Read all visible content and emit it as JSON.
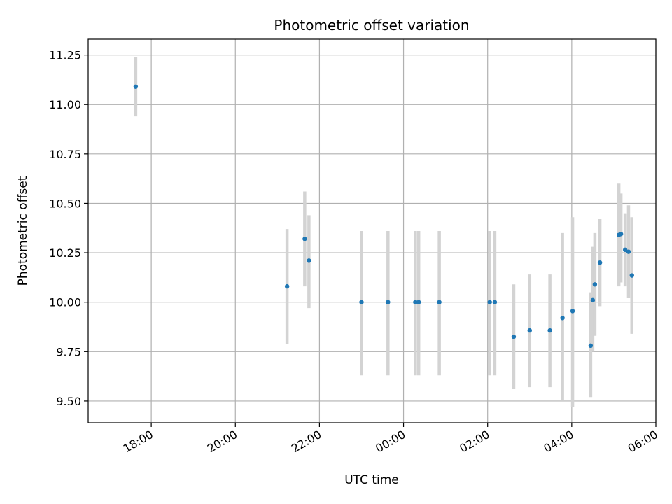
{
  "chart_data": {
    "type": "scatter",
    "title": "Photometric offset variation",
    "xlabel": "UTC time",
    "ylabel": "Photometric offset",
    "grid": true,
    "xlim_hours": [
      16.5,
      30.0
    ],
    "ylim": [
      9.39,
      11.33
    ],
    "x_ticks": [
      {
        "hour": 18,
        "label": "18:00"
      },
      {
        "hour": 20,
        "label": "20:00"
      },
      {
        "hour": 22,
        "label": "22:00"
      },
      {
        "hour": 24,
        "label": "00:00"
      },
      {
        "hour": 26,
        "label": "02:00"
      },
      {
        "hour": 28,
        "label": "04:00"
      },
      {
        "hour": 30,
        "label": "06:00"
      }
    ],
    "y_ticks": [
      {
        "value": 9.5,
        "label": "9.50"
      },
      {
        "value": 9.75,
        "label": "9.75"
      },
      {
        "value": 10.0,
        "label": "10.00"
      },
      {
        "value": 10.25,
        "label": "10.25"
      },
      {
        "value": 10.5,
        "label": "10.50"
      },
      {
        "value": 10.75,
        "label": "10.75"
      },
      {
        "value": 11.0,
        "label": "11.00"
      },
      {
        "value": 11.25,
        "label": "11.25"
      }
    ],
    "point_color": "#1f77b4",
    "errorbar_color": "#d3d3d3",
    "points": [
      {
        "hour": 17.63,
        "y": 11.09,
        "lo": 10.94,
        "hi": 11.24
      },
      {
        "hour": 21.23,
        "y": 10.08,
        "lo": 9.79,
        "hi": 10.37
      },
      {
        "hour": 21.65,
        "y": 10.32,
        "lo": 10.08,
        "hi": 10.56
      },
      {
        "hour": 21.75,
        "y": 10.21,
        "lo": 9.97,
        "hi": 10.44
      },
      {
        "hour": 23.0,
        "y": 10.0,
        "lo": 9.63,
        "hi": 10.36
      },
      {
        "hour": 23.63,
        "y": 10.0,
        "lo": 9.63,
        "hi": 10.36
      },
      {
        "hour": 24.28,
        "y": 10.0,
        "lo": 9.63,
        "hi": 10.36
      },
      {
        "hour": 24.36,
        "y": 10.0,
        "lo": 9.63,
        "hi": 10.36
      },
      {
        "hour": 24.85,
        "y": 10.0,
        "lo": 9.63,
        "hi": 10.36
      },
      {
        "hour": 26.05,
        "y": 10.0,
        "lo": 9.63,
        "hi": 10.36
      },
      {
        "hour": 26.17,
        "y": 10.0,
        "lo": 9.63,
        "hi": 10.36
      },
      {
        "hour": 26.62,
        "y": 9.825,
        "lo": 9.56,
        "hi": 10.09
      },
      {
        "hour": 27.0,
        "y": 9.857,
        "lo": 9.57,
        "hi": 10.14
      },
      {
        "hour": 27.48,
        "y": 9.857,
        "lo": 9.57,
        "hi": 10.14
      },
      {
        "hour": 27.78,
        "y": 9.92,
        "lo": 9.5,
        "hi": 10.35
      },
      {
        "hour": 28.02,
        "y": 9.955,
        "lo": 9.47,
        "hi": 10.43
      },
      {
        "hour": 28.45,
        "y": 9.78,
        "lo": 9.52,
        "hi": 10.05
      },
      {
        "hour": 28.5,
        "y": 10.01,
        "lo": 9.75,
        "hi": 10.28
      },
      {
        "hour": 28.55,
        "y": 10.09,
        "lo": 9.83,
        "hi": 10.35
      },
      {
        "hour": 28.67,
        "y": 10.2,
        "lo": 9.98,
        "hi": 10.42
      },
      {
        "hour": 29.12,
        "y": 10.34,
        "lo": 10.08,
        "hi": 10.6
      },
      {
        "hour": 29.17,
        "y": 10.345,
        "lo": 10.1,
        "hi": 10.55
      },
      {
        "hour": 29.27,
        "y": 10.265,
        "lo": 10.08,
        "hi": 10.45
      },
      {
        "hour": 29.35,
        "y": 10.255,
        "lo": 10.02,
        "hi": 10.49
      },
      {
        "hour": 29.43,
        "y": 10.135,
        "lo": 9.84,
        "hi": 10.43
      }
    ]
  }
}
